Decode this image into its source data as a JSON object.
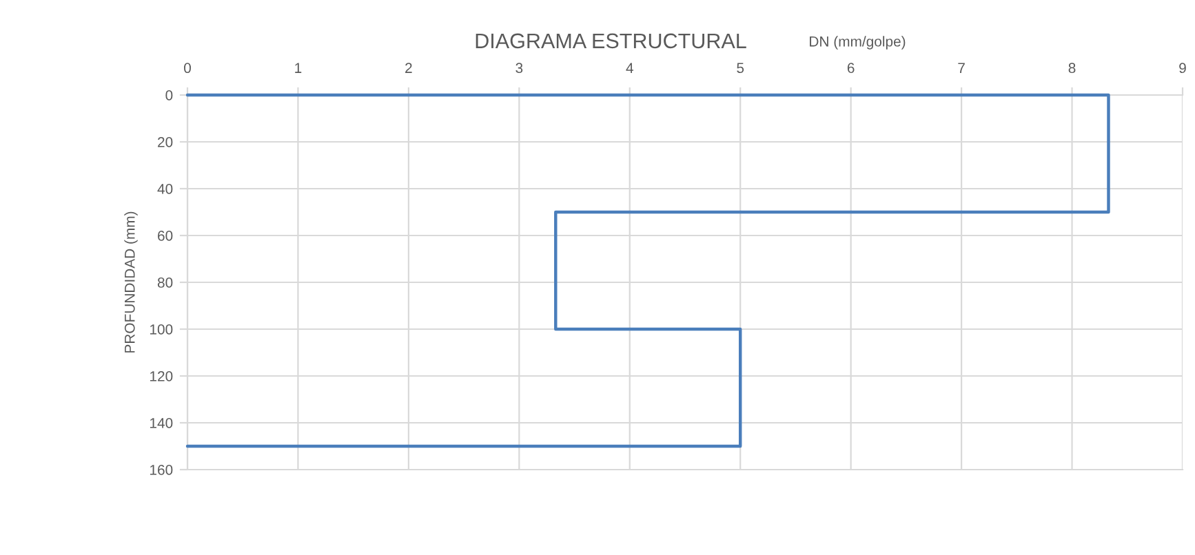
{
  "chart_data": {
    "type": "line",
    "title": "DIAGRAMA ESTRUCTURAL",
    "xlabel": "DN (mm/golpe)",
    "ylabel": "PROFUNDIDAD (mm)",
    "series": [
      {
        "color": "#4a7ebb",
        "x": [
          0,
          8.33,
          8.33,
          3.33,
          3.33,
          5,
          5,
          0
        ],
        "values": [
          0,
          0,
          50,
          50,
          100,
          100,
          150,
          150
        ]
      }
    ],
    "xlim": [
      0,
      9
    ],
    "xticks": [
      0,
      1,
      2,
      3,
      4,
      5,
      6,
      7,
      8,
      9
    ],
    "ylim": [
      160,
      0
    ],
    "yticks": [
      0,
      20,
      40,
      60,
      80,
      100,
      120,
      140,
      160
    ],
    "grid": true,
    "marker": "none",
    "line_style": "solid"
  }
}
